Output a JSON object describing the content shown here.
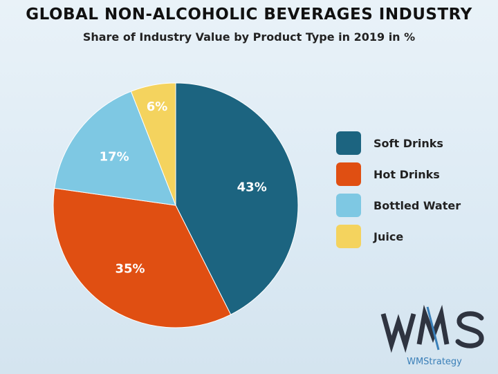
{
  "chart_data": {
    "type": "pie",
    "title": "GLOBAL NON-ALCOHOLIC BEVERAGES INDUSTRY",
    "subtitle": "Share of Industry Value by Product Type in 2019 in %",
    "slices": [
      {
        "name": "Soft Drinks",
        "value": 43,
        "label": "43%",
        "color": "#1c6480"
      },
      {
        "name": "Hot Drinks",
        "value": 35,
        "label": "35%",
        "color": "#e04f12"
      },
      {
        "name": "Bottled Water",
        "value": 17,
        "label": "17%",
        "color": "#7ec8e3"
      },
      {
        "name": "Juice",
        "value": 6,
        "label": "6%",
        "color": "#f4d35e"
      }
    ],
    "legend_position": "right"
  },
  "branding": {
    "logo_text": "WMS",
    "brand_name": "WMStrategy",
    "logo_color": "#2f3440",
    "brand_color": "#3a7fb8"
  }
}
